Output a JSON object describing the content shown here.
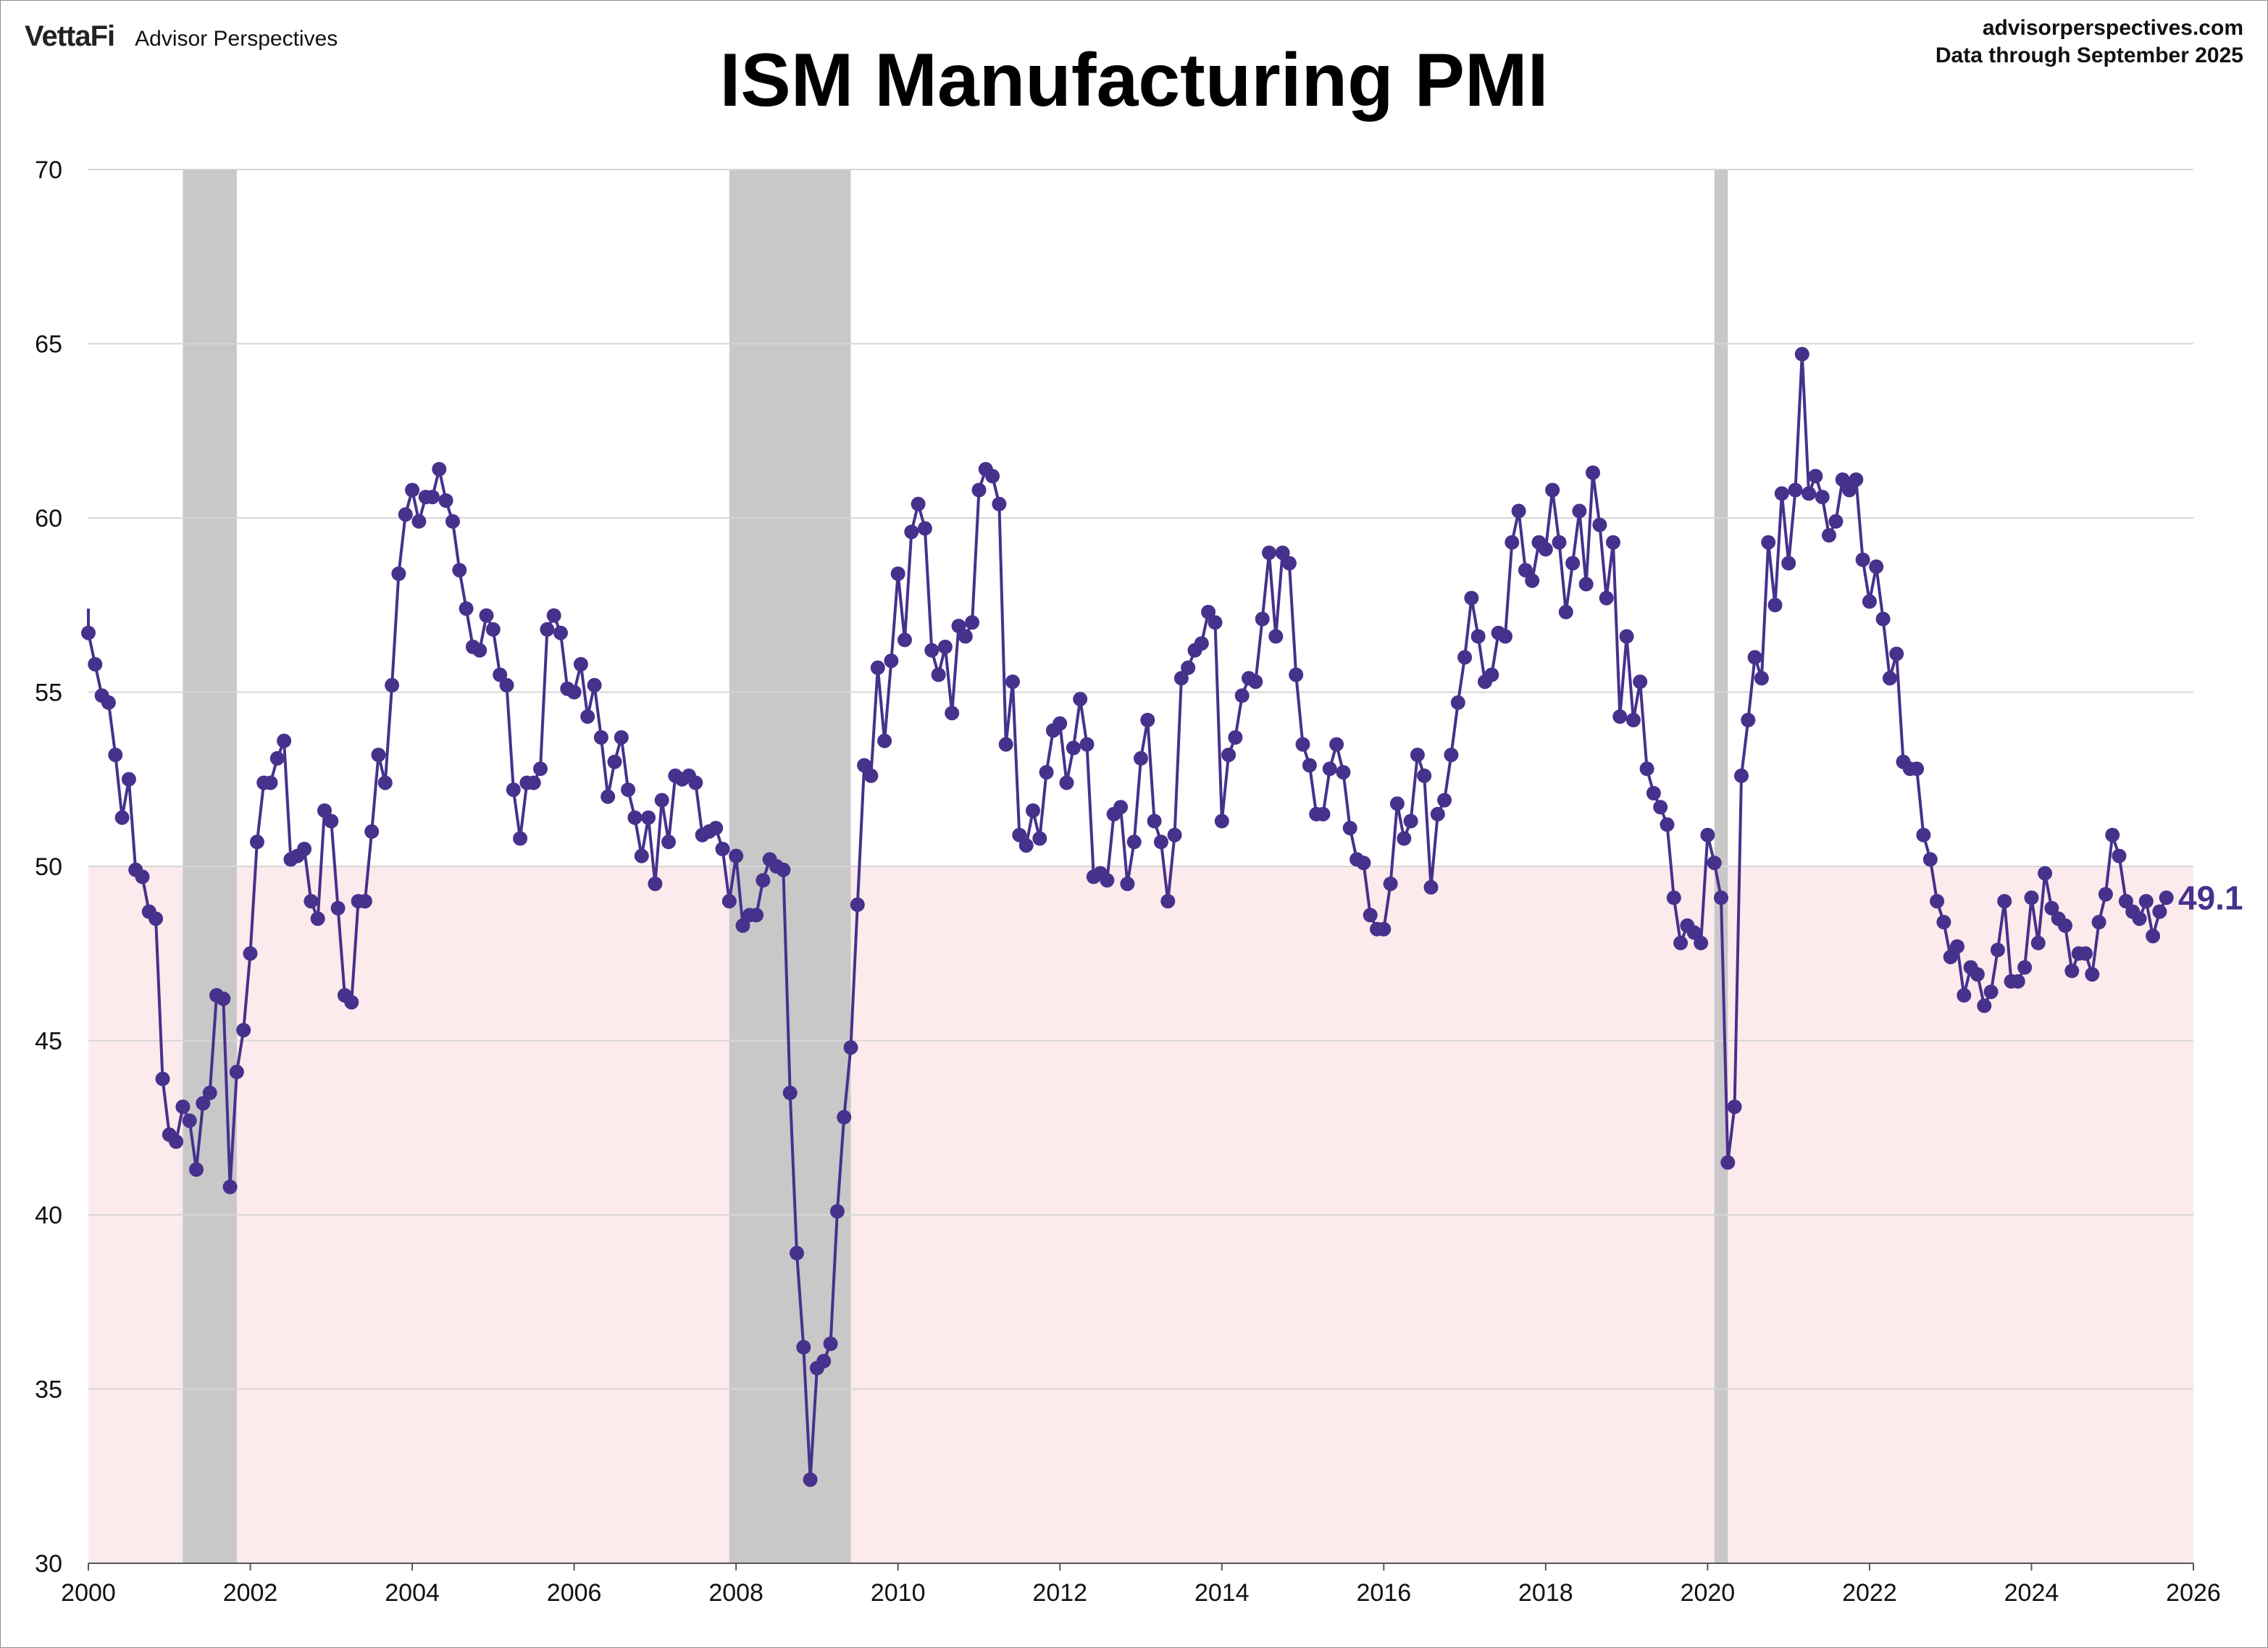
{
  "header": {
    "brand_logo": "VettaFi",
    "brand_name": "Advisor Perspectives",
    "source": "advisorperspectives.com",
    "data_through": "Data through  September 2025"
  },
  "colors": {
    "line": "#46318c",
    "recession": "#c8c8c8",
    "contraction_zone": "#fdeaec",
    "grid": "#d6d6d6"
  },
  "chart_data": {
    "type": "line",
    "title": "ISM Manufacturing PMI",
    "xlabel": "",
    "ylabel": "",
    "xlim": [
      2000,
      2026
    ],
    "ylim": [
      30,
      70
    ],
    "x_ticks": [
      "2000",
      "2002",
      "2004",
      "2006",
      "2008",
      "2010",
      "2012",
      "2014",
      "2016",
      "2018",
      "2020",
      "2022",
      "2024",
      "2026"
    ],
    "y_ticks": [
      "30",
      "35",
      "40",
      "45",
      "50",
      "55",
      "60",
      "65",
      "70"
    ],
    "grid": true,
    "shaded_below": 50,
    "recessions": [
      {
        "start": "2001-03",
        "end": "2001-11"
      },
      {
        "start": "2007-12",
        "end": "2009-06"
      },
      {
        "start": "2020-02",
        "end": "2020-04"
      }
    ],
    "last_value_label": "49.1",
    "series": [
      {
        "start": "2000-01",
        "frequency": "monthly",
        "values": [
          56.7,
          55.8,
          54.9,
          54.7,
          53.2,
          51.4,
          52.5,
          49.9,
          49.7,
          48.7,
          48.5,
          43.9,
          42.3,
          42.1,
          43.1,
          42.7,
          41.3,
          43.2,
          43.5,
          46.3,
          46.2,
          40.8,
          44.1,
          45.3,
          47.5,
          50.7,
          52.4,
          52.4,
          53.1,
          53.6,
          50.2,
          50.3,
          50.5,
          49.0,
          48.5,
          51.6,
          51.3,
          48.8,
          46.3,
          46.1,
          49.0,
          49.0,
          51.0,
          53.2,
          52.4,
          55.2,
          58.4,
          60.1,
          60.8,
          59.9,
          60.6,
          60.6,
          61.4,
          60.5,
          59.9,
          58.5,
          57.4,
          56.3,
          56.2,
          57.2,
          56.8,
          55.5,
          55.2,
          52.2,
          50.8,
          52.4,
          52.4,
          52.8,
          56.8,
          57.2,
          56.7,
          55.1,
          55.0,
          55.8,
          54.3,
          55.2,
          53.7,
          52.0,
          53.0,
          53.7,
          52.2,
          51.4,
          50.3,
          51.4,
          49.5,
          51.9,
          50.7,
          52.6,
          52.5,
          52.6,
          52.4,
          50.9,
          51.0,
          51.1,
          50.5,
          49.0,
          50.3,
          48.3,
          48.6,
          48.6,
          49.6,
          50.2,
          50.0,
          49.9,
          43.5,
          38.9,
          36.2,
          32.4,
          35.6,
          35.8,
          36.3,
          40.1,
          42.8,
          44.8,
          48.9,
          52.9,
          52.6,
          55.7,
          53.6,
          55.9,
          58.4,
          56.5,
          59.6,
          60.4,
          59.7,
          56.2,
          55.5,
          56.3,
          54.4,
          56.9,
          56.6,
          57.0,
          60.8,
          61.4,
          61.2,
          60.4,
          53.5,
          55.3,
          50.9,
          50.6,
          51.6,
          50.8,
          52.7,
          53.9,
          54.1,
          52.4,
          53.4,
          54.8,
          53.5,
          49.7,
          49.8,
          49.6,
          51.5,
          51.7,
          49.5,
          50.7,
          53.1,
          54.2,
          51.3,
          50.7,
          49.0,
          50.9,
          55.4,
          55.7,
          56.2,
          56.4,
          57.3,
          57.0,
          51.3,
          53.2,
          53.7,
          54.9,
          55.4,
          55.3,
          57.1,
          59.0,
          56.6,
          59.0,
          58.7,
          55.5,
          53.5,
          52.9,
          51.5,
          51.5,
          52.8,
          53.5,
          52.7,
          51.1,
          50.2,
          50.1,
          48.6,
          48.2,
          48.2,
          49.5,
          51.8,
          50.8,
          51.3,
          53.2,
          52.6,
          49.4,
          51.5,
          51.9,
          53.2,
          54.7,
          56.0,
          57.7,
          56.6,
          55.3,
          55.5,
          56.7,
          56.6,
          59.3,
          60.2,
          58.5,
          58.2,
          59.3,
          59.1,
          60.8,
          59.3,
          57.3,
          58.7,
          60.2,
          58.1,
          61.3,
          59.8,
          57.7,
          59.3,
          54.3,
          56.6,
          54.2,
          55.3,
          52.8,
          52.1,
          51.7,
          51.2,
          49.1,
          47.8,
          48.3,
          48.1,
          47.8,
          50.9,
          50.1,
          49.1,
          41.5,
          43.1,
          52.6,
          54.2,
          56.0,
          55.4,
          59.3,
          57.5,
          60.7,
          58.7,
          60.8,
          64.7,
          60.7,
          61.2,
          60.6,
          59.5,
          59.9,
          61.1,
          60.8,
          61.1,
          58.8,
          57.6,
          58.6,
          57.1,
          55.4,
          56.1,
          53.0,
          52.8,
          52.8,
          50.9,
          50.2,
          49.0,
          48.4,
          47.4,
          47.7,
          46.3,
          47.1,
          46.9,
          46.0,
          46.4,
          47.6,
          49.0,
          46.7,
          46.7,
          47.1,
          49.1,
          47.8,
          49.8,
          48.8,
          48.5,
          48.3,
          47.0,
          47.5,
          47.5,
          46.9,
          48.4,
          49.2,
          50.9,
          50.3,
          49.0,
          48.7,
          48.5,
          49.0,
          48.0,
          48.7,
          49.1
        ]
      }
    ]
  }
}
